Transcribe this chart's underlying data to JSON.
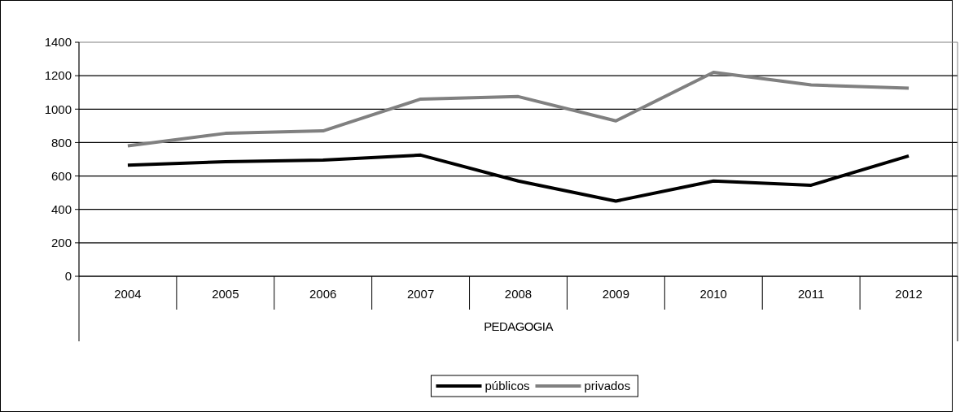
{
  "chart_data": {
    "type": "line",
    "xlabel": "PEDAGOGIA",
    "categories": [
      "2004",
      "2005",
      "2006",
      "2007",
      "2008",
      "2009",
      "2010",
      "2011",
      "2012"
    ],
    "series": [
      {
        "name": "públicos",
        "color": "#000000",
        "values": [
          665,
          685,
          695,
          725,
          570,
          450,
          570,
          545,
          720
        ]
      },
      {
        "name": "privados",
        "color": "#808080",
        "values": [
          780,
          855,
          870,
          1060,
          1075,
          930,
          1220,
          1145,
          1125
        ]
      }
    ],
    "ylim": [
      0,
      1400
    ],
    "yticks": [
      0,
      200,
      400,
      600,
      800,
      1000,
      1200,
      1400
    ],
    "grid": "y",
    "legend": "bottom",
    "marker": "none",
    "line_style": "solid"
  }
}
